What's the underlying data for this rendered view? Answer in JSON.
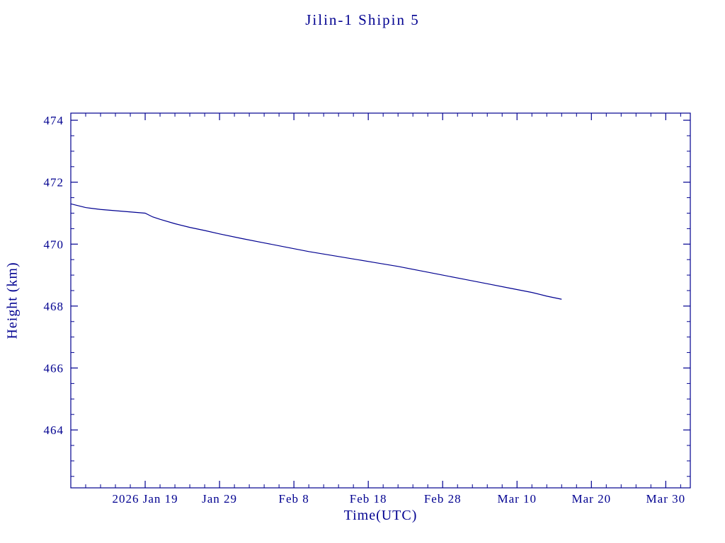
{
  "colors": {
    "accent": "#000090",
    "background": "#ffffff"
  },
  "chart_data": {
    "type": "line",
    "title": "Jilin-1 Shipin 5",
    "xlabel": "Time(UTC)",
    "ylabel": "Height (km)",
    "x_unit": "days since 2026 Jan 9",
    "xlim": [
      0,
      83.3
    ],
    "ylim": [
      462.13,
      474.23
    ],
    "grid": false,
    "legend": "none",
    "line_color": "#000090",
    "x_ticks": [
      {
        "value": 10,
        "label": "2026 Jan 19"
      },
      {
        "value": 20,
        "label": "Jan 29"
      },
      {
        "value": 30,
        "label": "Feb 8"
      },
      {
        "value": 40,
        "label": "Feb 18"
      },
      {
        "value": 50,
        "label": "Feb 28"
      },
      {
        "value": 60,
        "label": "Mar 10"
      },
      {
        "value": 70,
        "label": "Mar 20"
      },
      {
        "value": 80,
        "label": "Mar 30"
      }
    ],
    "y_ticks": [
      {
        "value": 474,
        "label": "474"
      },
      {
        "value": 472,
        "label": "472"
      },
      {
        "value": 470,
        "label": "470"
      },
      {
        "value": 468,
        "label": "468"
      },
      {
        "value": 466,
        "label": "466"
      },
      {
        "value": 464,
        "label": "464"
      }
    ],
    "x_minor_step": 2,
    "y_minor_step": 0.5,
    "series": [
      {
        "name": "Height (km)",
        "points": [
          [
            0,
            471.3
          ],
          [
            2,
            471.18
          ],
          [
            4,
            471.12
          ],
          [
            6,
            471.08
          ],
          [
            8,
            471.04
          ],
          [
            10,
            471.0
          ],
          [
            11,
            470.88
          ],
          [
            12,
            470.8
          ],
          [
            14,
            470.66
          ],
          [
            16,
            470.54
          ],
          [
            18,
            470.44
          ],
          [
            20,
            470.33
          ],
          [
            23,
            470.18
          ],
          [
            26,
            470.04
          ],
          [
            29,
            469.9
          ],
          [
            32,
            469.76
          ],
          [
            35,
            469.64
          ],
          [
            38,
            469.52
          ],
          [
            41,
            469.4
          ],
          [
            44,
            469.28
          ],
          [
            47,
            469.14
          ],
          [
            50,
            469.0
          ],
          [
            53,
            468.86
          ],
          [
            56,
            468.72
          ],
          [
            59,
            468.58
          ],
          [
            62,
            468.44
          ],
          [
            64,
            468.32
          ],
          [
            66,
            468.22
          ]
        ]
      }
    ]
  }
}
